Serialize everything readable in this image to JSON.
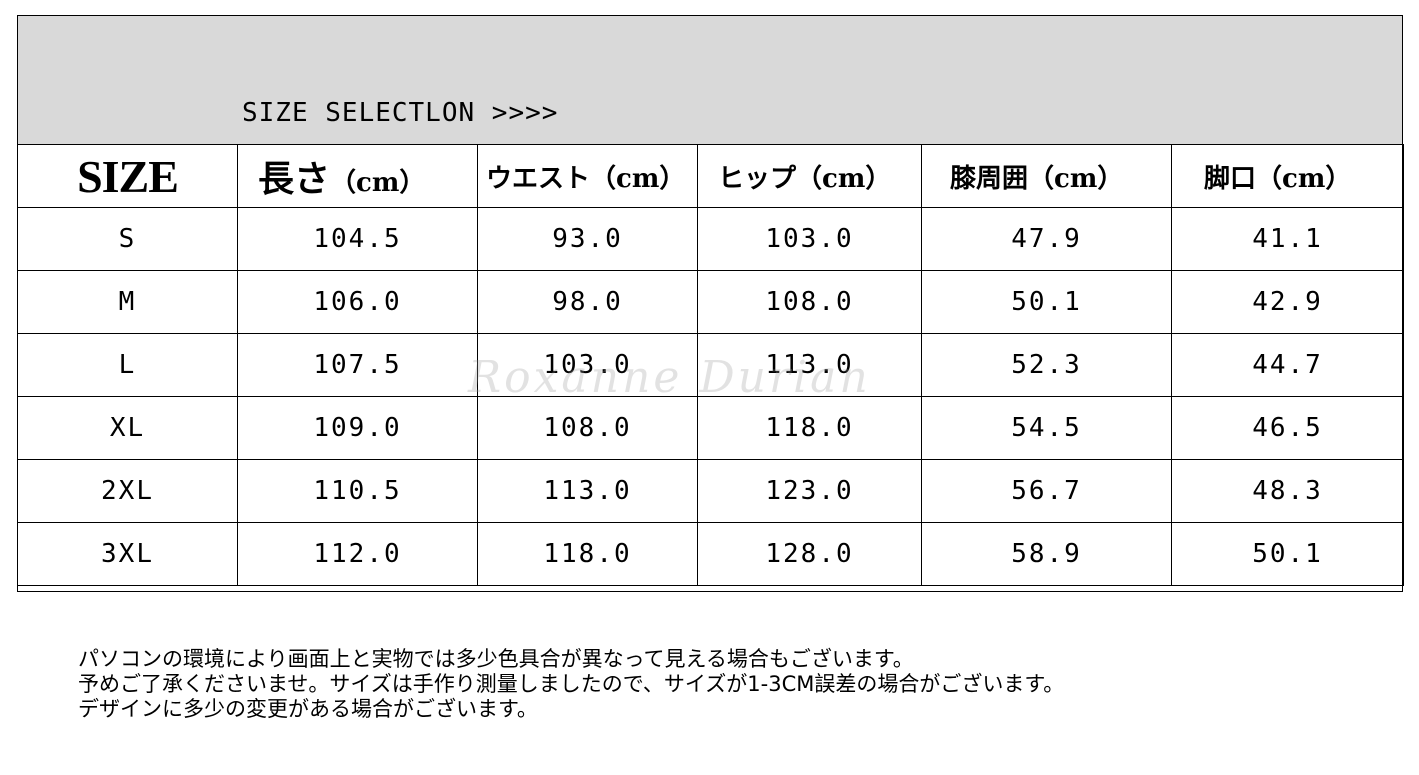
{
  "banner": {
    "title": "SIZE SELECTLON >>>>"
  },
  "table": {
    "headers": [
      {
        "main": "SIZE",
        "unit": ""
      },
      {
        "main": "長さ",
        "unit": "（cm）"
      },
      {
        "main": "ウエスト",
        "unit": "（cm）"
      },
      {
        "main": "ヒップ",
        "unit": "（cm）"
      },
      {
        "main": "膝周囲",
        "unit": "（cm）"
      },
      {
        "main": "脚口",
        "unit": "（cm）"
      }
    ],
    "rows": [
      [
        "S",
        "104.5",
        "93.0",
        "103.0",
        "47.9",
        "41.1"
      ],
      [
        "M",
        "106.0",
        "98.0",
        "108.0",
        "50.1",
        "42.9"
      ],
      [
        "L",
        "107.5",
        "103.0",
        "113.0",
        "52.3",
        "44.7"
      ],
      [
        "XL",
        "109.0",
        "108.0",
        "118.0",
        "54.5",
        "46.5"
      ],
      [
        "2XL",
        "110.5",
        "113.0",
        "123.0",
        "56.7",
        "48.3"
      ],
      [
        "3XL",
        "112.0",
        "118.0",
        "128.0",
        "58.9",
        "50.1"
      ]
    ]
  },
  "watermark": "Roxanne Durian",
  "notes": [
    "パソコンの環境により画面上と実物では多少色具合が異なって見える場合もございます。",
    "予めご了承くださいませ。サイズは手作り測量しましたので、サイズが1-3CM誤差の場合がございます。",
    "デザインに多少の変更がある場合がございます。"
  ]
}
